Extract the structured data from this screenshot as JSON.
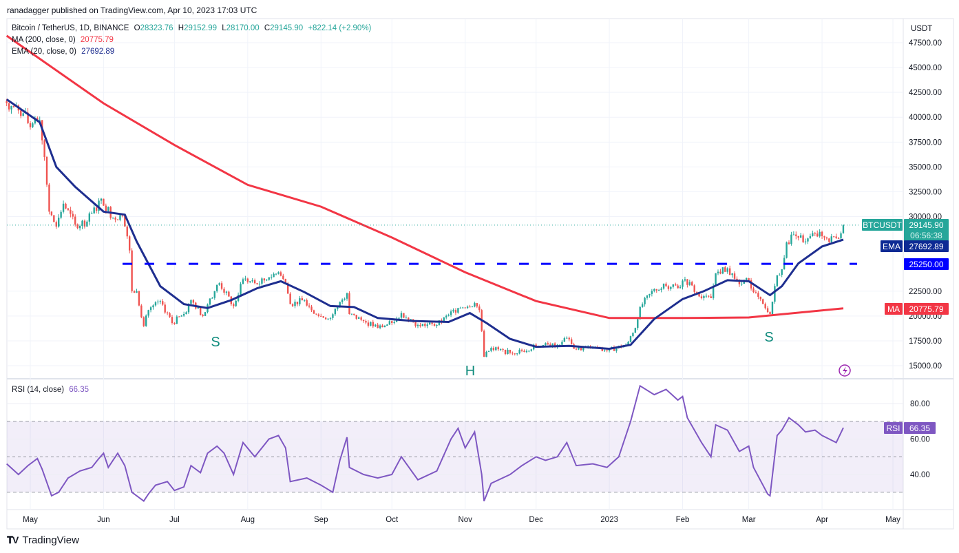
{
  "header": {
    "published": "ranadagger published on TradingView.com, Apr 10, 2023 17:03 UTC"
  },
  "legend": {
    "symbol": "Bitcoin / TetherUS, 1D, BINANCE",
    "o_label": "O",
    "o": "28323.76",
    "h_label": "H",
    "h": "29152.99",
    "l_label": "L",
    "l": "28170.00",
    "c_label": "C",
    "c": "29145.90",
    "change": "+822.14 (+2.90%)",
    "ma_label": "MA (200, close, 0)",
    "ma_value": "20775.79",
    "ema_label": "EMA (20, close, 0)",
    "ema_value": "27692.89",
    "rsi_label": "RSI (14, close)",
    "rsi_value": "66.35"
  },
  "axis": {
    "currency": "USDT"
  },
  "badges": {
    "symbol": "BTCUSDT",
    "price": "29145.90",
    "countdown": "06:56:38",
    "ema": "EMA",
    "ema_value": "27692.89",
    "level": "25250.00",
    "ma": "MA",
    "ma_value": "20775.79",
    "rsi": "RSI",
    "rsi_value": "66.35"
  },
  "annotations": {
    "s_left": "S",
    "head": "H",
    "s_right": "S"
  },
  "footer": {
    "brand": "TradingView"
  },
  "colors": {
    "up": "#26a69a",
    "down": "#ef5350",
    "ma": "#f23645",
    "ema": "#1e2e8f",
    "level": "#0000ff",
    "rsi": "#7e57c2"
  },
  "chart_data": {
    "type": "candlestick",
    "ylim": [
      14000,
      49000
    ],
    "yticks": [
      "47500.00",
      "45000.00",
      "42500.00",
      "40000.00",
      "37500.00",
      "35000.00",
      "32500.00",
      "30000.00",
      "22500.00",
      "20000.00",
      "17500.00",
      "15000.00"
    ],
    "xticks": [
      [
        "2022-05-01",
        "May"
      ],
      [
        "2022-06-01",
        "Jun"
      ],
      [
        "2022-07-01",
        "Jul"
      ],
      [
        "2022-08-01",
        "Aug"
      ],
      [
        "2022-09-01",
        "Sep"
      ],
      [
        "2022-10-01",
        "Oct"
      ],
      [
        "2022-11-01",
        "Nov"
      ],
      [
        "2022-12-01",
        "Dec"
      ],
      [
        "2023-01-01",
        "2023"
      ],
      [
        "2023-02-01",
        "Feb"
      ],
      [
        "2023-03-01",
        "Mar"
      ],
      [
        "2023-04-01",
        "Apr"
      ],
      [
        "2023-05-01",
        "May"
      ]
    ],
    "horizontal_level": 25250,
    "last_price": 29145.9,
    "close": [
      [
        "2022-04-21",
        41400
      ],
      [
        "2022-04-28",
        40400
      ],
      [
        "2022-05-01",
        39000
      ],
      [
        "2022-05-05",
        39700
      ],
      [
        "2022-05-07",
        36000
      ],
      [
        "2022-05-09",
        30500
      ],
      [
        "2022-05-12",
        29000
      ],
      [
        "2022-05-15",
        31300
      ],
      [
        "2022-05-20",
        29200
      ],
      [
        "2022-05-25",
        29500
      ],
      [
        "2022-05-31",
        31800
      ],
      [
        "2022-06-05",
        29900
      ],
      [
        "2022-06-09",
        30100
      ],
      [
        "2022-06-10",
        29000
      ],
      [
        "2022-06-12",
        26600
      ],
      [
        "2022-06-13",
        22500
      ],
      [
        "2022-06-15",
        22500
      ],
      [
        "2022-06-18",
        19000
      ],
      [
        "2022-06-20",
        20600
      ],
      [
        "2022-06-25",
        21500
      ],
      [
        "2022-06-30",
        19300
      ],
      [
        "2022-07-05",
        20200
      ],
      [
        "2022-07-08",
        21600
      ],
      [
        "2022-07-13",
        20000
      ],
      [
        "2022-07-18",
        22500
      ],
      [
        "2022-07-20",
        23300
      ],
      [
        "2022-07-26",
        21000
      ],
      [
        "2022-07-30",
        23700
      ],
      [
        "2022-08-05",
        23200
      ],
      [
        "2022-08-10",
        23900
      ],
      [
        "2022-08-14",
        24400
      ],
      [
        "2022-08-17",
        23300
      ],
      [
        "2022-08-19",
        21200
      ],
      [
        "2022-08-25",
        21600
      ],
      [
        "2022-08-31",
        20000
      ],
      [
        "2022-09-05",
        19800
      ],
      [
        "2022-09-09",
        21400
      ],
      [
        "2022-09-12",
        22300
      ],
      [
        "2022-09-13",
        20200
      ],
      [
        "2022-09-19",
        19500
      ],
      [
        "2022-09-25",
        18800
      ],
      [
        "2022-10-01",
        19300
      ],
      [
        "2022-10-05",
        20300
      ],
      [
        "2022-10-12",
        19100
      ],
      [
        "2022-10-20",
        19100
      ],
      [
        "2022-10-25",
        20100
      ],
      [
        "2022-10-29",
        20800
      ],
      [
        "2022-11-05",
        21300
      ],
      [
        "2022-11-07",
        20600
      ],
      [
        "2022-11-08",
        18500
      ],
      [
        "2022-11-09",
        15900
      ],
      [
        "2022-11-12",
        16800
      ],
      [
        "2022-11-20",
        16300
      ],
      [
        "2022-11-25",
        16500
      ],
      [
        "2022-12-01",
        17000
      ],
      [
        "2022-12-10",
        17100
      ],
      [
        "2022-12-14",
        17800
      ],
      [
        "2022-12-17",
        16700
      ],
      [
        "2022-12-25",
        16800
      ],
      [
        "2022-12-31",
        16500
      ],
      [
        "2023-01-08",
        17100
      ],
      [
        "2023-01-12",
        18800
      ],
      [
        "2023-01-14",
        20900
      ],
      [
        "2023-01-20",
        22700
      ],
      [
        "2023-01-25",
        23000
      ],
      [
        "2023-01-30",
        22800
      ],
      [
        "2023-02-02",
        23700
      ],
      [
        "2023-02-09",
        21800
      ],
      [
        "2023-02-13",
        21800
      ],
      [
        "2023-02-15",
        24300
      ],
      [
        "2023-02-20",
        24800
      ],
      [
        "2023-02-25",
        23200
      ],
      [
        "2023-03-01",
        23600
      ],
      [
        "2023-03-03",
        22400
      ],
      [
        "2023-03-09",
        20400
      ],
      [
        "2023-03-10",
        20200
      ],
      [
        "2023-03-13",
        24100
      ],
      [
        "2023-03-15",
        24700
      ],
      [
        "2023-03-17",
        27400
      ],
      [
        "2023-03-20",
        28200
      ],
      [
        "2023-03-25",
        27500
      ],
      [
        "2023-03-29",
        28300
      ],
      [
        "2023-04-03",
        27800
      ],
      [
        "2023-04-06",
        28000
      ],
      [
        "2023-04-09",
        28323.76
      ],
      [
        "2023-04-10",
        29145.9
      ]
    ],
    "ma200": [
      [
        "2022-04-21",
        48200
      ],
      [
        "2022-06-01",
        41400
      ],
      [
        "2022-07-01",
        37200
      ],
      [
        "2022-08-01",
        33200
      ],
      [
        "2022-09-01",
        31000
      ],
      [
        "2022-10-01",
        27900
      ],
      [
        "2022-11-01",
        24400
      ],
      [
        "2022-12-01",
        21500
      ],
      [
        "2023-01-01",
        19800
      ],
      [
        "2023-02-01",
        19800
      ],
      [
        "2023-03-01",
        19850
      ],
      [
        "2023-04-10",
        20775.79
      ]
    ],
    "ema20": [
      [
        "2022-04-21",
        41800
      ],
      [
        "2022-05-05",
        39500
      ],
      [
        "2022-05-12",
        35000
      ],
      [
        "2022-05-20",
        33000
      ],
      [
        "2022-06-01",
        30500
      ],
      [
        "2022-06-10",
        30200
      ],
      [
        "2022-06-15",
        27500
      ],
      [
        "2022-06-25",
        23000
      ],
      [
        "2022-07-05",
        21200
      ],
      [
        "2022-07-15",
        20800
      ],
      [
        "2022-07-25",
        21600
      ],
      [
        "2022-08-05",
        22800
      ],
      [
        "2022-08-15",
        23500
      ],
      [
        "2022-08-25",
        22400
      ],
      [
        "2022-09-05",
        21000
      ],
      [
        "2022-09-15",
        20900
      ],
      [
        "2022-09-25",
        19800
      ],
      [
        "2022-10-10",
        19500
      ],
      [
        "2022-10-25",
        19400
      ],
      [
        "2022-11-03",
        20300
      ],
      [
        "2022-11-10",
        19300
      ],
      [
        "2022-11-20",
        17700
      ],
      [
        "2022-12-01",
        16900
      ],
      [
        "2022-12-15",
        17000
      ],
      [
        "2023-01-01",
        16700
      ],
      [
        "2023-01-10",
        17100
      ],
      [
        "2023-01-20",
        19700
      ],
      [
        "2023-02-01",
        21700
      ],
      [
        "2023-02-10",
        22500
      ],
      [
        "2023-02-20",
        23600
      ],
      [
        "2023-03-01",
        23500
      ],
      [
        "2023-03-10",
        22100
      ],
      [
        "2023-03-15",
        23000
      ],
      [
        "2023-03-22",
        25300
      ],
      [
        "2023-04-01",
        27000
      ],
      [
        "2023-04-10",
        27692.89
      ]
    ],
    "rsi": {
      "yticks": [
        "80.00",
        "60.00",
        "40.00"
      ],
      "bands": [
        30,
        50,
        70
      ],
      "values": [
        [
          "2022-04-21",
          46
        ],
        [
          "2022-04-26",
          40
        ],
        [
          "2022-04-30",
          45
        ],
        [
          "2022-05-04",
          49
        ],
        [
          "2022-05-06",
          43
        ],
        [
          "2022-05-10",
          28
        ],
        [
          "2022-05-13",
          30
        ],
        [
          "2022-05-17",
          38
        ],
        [
          "2022-05-22",
          42
        ],
        [
          "2022-05-27",
          44
        ],
        [
          "2022-05-30",
          49
        ],
        [
          "2022-06-01",
          52
        ],
        [
          "2022-06-03",
          44
        ],
        [
          "2022-06-07",
          52
        ],
        [
          "2022-06-10",
          45
        ],
        [
          "2022-06-13",
          30
        ],
        [
          "2022-06-18",
          25
        ],
        [
          "2022-06-20",
          29
        ],
        [
          "2022-06-23",
          34
        ],
        [
          "2022-06-28",
          36
        ],
        [
          "2022-07-01",
          31
        ],
        [
          "2022-07-05",
          33
        ],
        [
          "2022-07-08",
          45
        ],
        [
          "2022-07-12",
          41
        ],
        [
          "2022-07-15",
          52
        ],
        [
          "2022-07-19",
          56
        ],
        [
          "2022-07-22",
          52
        ],
        [
          "2022-07-26",
          40
        ],
        [
          "2022-07-30",
          58
        ],
        [
          "2022-08-04",
          50
        ],
        [
          "2022-08-10",
          60
        ],
        [
          "2022-08-14",
          62
        ],
        [
          "2022-08-17",
          55
        ],
        [
          "2022-08-19",
          36
        ],
        [
          "2022-08-26",
          38
        ],
        [
          "2022-09-01",
          34
        ],
        [
          "2022-09-06",
          30
        ],
        [
          "2022-09-09",
          48
        ],
        [
          "2022-09-12",
          61
        ],
        [
          "2022-09-13",
          44
        ],
        [
          "2022-09-19",
          40
        ],
        [
          "2022-09-25",
          38
        ],
        [
          "2022-10-01",
          40
        ],
        [
          "2022-10-05",
          50
        ],
        [
          "2022-10-12",
          37
        ],
        [
          "2022-10-20",
          42
        ],
        [
          "2022-10-26",
          60
        ],
        [
          "2022-10-29",
          66
        ],
        [
          "2022-11-01",
          55
        ],
        [
          "2022-11-05",
          64
        ],
        [
          "2022-11-08",
          40
        ],
        [
          "2022-11-09",
          25
        ],
        [
          "2022-11-12",
          35
        ],
        [
          "2022-11-20",
          40
        ],
        [
          "2022-11-25",
          45
        ],
        [
          "2022-12-01",
          50
        ],
        [
          "2022-12-05",
          48
        ],
        [
          "2022-12-10",
          50
        ],
        [
          "2022-12-14",
          58
        ],
        [
          "2022-12-18",
          45
        ],
        [
          "2022-12-25",
          46
        ],
        [
          "2022-12-31",
          44
        ],
        [
          "2023-01-05",
          50
        ],
        [
          "2023-01-10",
          70
        ],
        [
          "2023-01-14",
          90
        ],
        [
          "2023-01-20",
          85
        ],
        [
          "2023-01-25",
          88
        ],
        [
          "2023-01-30",
          82
        ],
        [
          "2023-02-01",
          84
        ],
        [
          "2023-02-03",
          72
        ],
        [
          "2023-02-09",
          58
        ],
        [
          "2023-02-13",
          50
        ],
        [
          "2023-02-15",
          68
        ],
        [
          "2023-02-20",
          65
        ],
        [
          "2023-02-25",
          53
        ],
        [
          "2023-03-01",
          56
        ],
        [
          "2023-03-03",
          44
        ],
        [
          "2023-03-09",
          29
        ],
        [
          "2023-03-10",
          28
        ],
        [
          "2023-03-13",
          62
        ],
        [
          "2023-03-15",
          65
        ],
        [
          "2023-03-18",
          72
        ],
        [
          "2023-03-22",
          68
        ],
        [
          "2023-03-25",
          64
        ],
        [
          "2023-03-29",
          65
        ],
        [
          "2023-04-01",
          62
        ],
        [
          "2023-04-04",
          60
        ],
        [
          "2023-04-07",
          58
        ],
        [
          "2023-04-10",
          66.35
        ]
      ]
    }
  }
}
